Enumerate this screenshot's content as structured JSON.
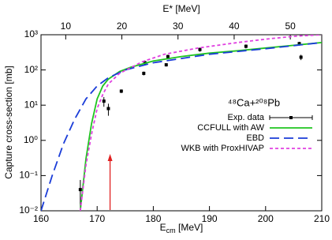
{
  "chart_data": {
    "type": "line",
    "xlabel": [
      "E",
      "cm",
      " [MeV]"
    ],
    "x2label": "E* [MeV]",
    "ylabel": "Capture cross-section [mb]",
    "annotation": "⁴⁸Ca+²⁰⁸Pb",
    "xlim": [
      160,
      210
    ],
    "xticks": [
      160,
      170,
      180,
      190,
      200,
      210
    ],
    "x2lim": [
      5.6,
      55.6
    ],
    "x2ticks": [
      10,
      20,
      30,
      40,
      50
    ],
    "ylog": true,
    "ylim": [
      0.01,
      1000
    ],
    "yticks": [
      {
        "value": 0.01,
        "label": "10⁻²"
      },
      {
        "value": 0.1,
        "label": "10⁻¹"
      },
      {
        "value": 1,
        "label": "10⁰"
      },
      {
        "value": 10,
        "label": "10¹"
      },
      {
        "value": 100,
        "label": "10²"
      },
      {
        "value": 1000,
        "label": "10³"
      }
    ],
    "legend": "lower right",
    "arrow_x": 172.3,
    "arrow_color": "#e02020",
    "series": [
      {
        "name": "Exp. data",
        "style": "points",
        "color": "#000000",
        "x": [
          167.0,
          171.2,
          172.0,
          174.3,
          178.3,
          178.5,
          182.3,
          182.6,
          188.3,
          196.5,
          206.0,
          206.3
        ],
        "values": [
          0.04,
          13,
          8,
          25,
          80,
          160,
          140,
          240,
          380,
          470,
          560,
          230
        ],
        "errors": [
          0.035,
          4,
          3,
          3,
          10,
          25,
          15,
          30,
          50,
          60,
          70,
          40
        ]
      },
      {
        "name": "CCFULL with AW",
        "style": "solid",
        "color": "#1fc41f",
        "x": [
          167,
          168,
          169,
          170,
          171,
          172,
          174,
          176,
          180,
          185,
          190,
          195,
          200,
          205,
          210
        ],
        "values": [
          0.01,
          0.3,
          3,
          15,
          35,
          55,
          90,
          120,
          180,
          240,
          300,
          350,
          420,
          500,
          600
        ]
      },
      {
        "name": "EBD",
        "style": "dashed",
        "color": "#1a3cd8",
        "x": [
          160,
          162,
          164,
          166,
          168,
          170,
          172,
          175,
          180,
          190,
          200,
          210
        ],
        "values": [
          0.01,
          0.1,
          0.8,
          4,
          15,
          35,
          60,
          100,
          160,
          280,
          400,
          600
        ]
      },
      {
        "name": "WKB with ProxHIVAP",
        "style": "dotted",
        "color": "#e040e0",
        "x": [
          167,
          168,
          169,
          170,
          171,
          172,
          174,
          178,
          182,
          188,
          195,
          200,
          205,
          210
        ],
        "values": [
          0.01,
          0.2,
          1.5,
          8,
          20,
          40,
          80,
          170,
          280,
          420,
          600,
          750,
          900,
          1000
        ]
      }
    ]
  }
}
